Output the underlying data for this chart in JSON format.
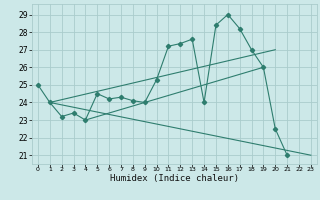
{
  "xlabel": "Humidex (Indice chaleur)",
  "background_color": "#cce8e8",
  "grid_color": "#aacccc",
  "line_color": "#2e7d6e",
  "xlim": [
    -0.5,
    23.5
  ],
  "ylim": [
    20.5,
    29.6
  ],
  "yticks": [
    21,
    22,
    23,
    24,
    25,
    26,
    27,
    28,
    29
  ],
  "xticks": [
    0,
    1,
    2,
    3,
    4,
    5,
    6,
    7,
    8,
    9,
    10,
    11,
    12,
    13,
    14,
    15,
    16,
    17,
    18,
    19,
    20,
    21,
    22,
    23
  ],
  "main_x": [
    0,
    1,
    2,
    3,
    4,
    5,
    6,
    7,
    8,
    9,
    10,
    11,
    12,
    13,
    14,
    15,
    16,
    17,
    18,
    19,
    20,
    21
  ],
  "main_y": [
    25.0,
    24.0,
    23.2,
    23.4,
    23.0,
    24.5,
    24.2,
    24.3,
    24.1,
    24.0,
    25.3,
    27.2,
    27.35,
    27.6,
    24.0,
    28.4,
    29.0,
    28.2,
    27.0,
    26.0,
    22.5,
    21.0
  ],
  "upper_line_x": [
    1,
    20
  ],
  "upper_line_y": [
    24.0,
    27.0
  ],
  "lower_line_x": [
    1,
    23
  ],
  "lower_line_y": [
    24.0,
    21.0
  ],
  "mid_line_x": [
    4,
    19
  ],
  "mid_line_y": [
    23.0,
    26.0
  ]
}
